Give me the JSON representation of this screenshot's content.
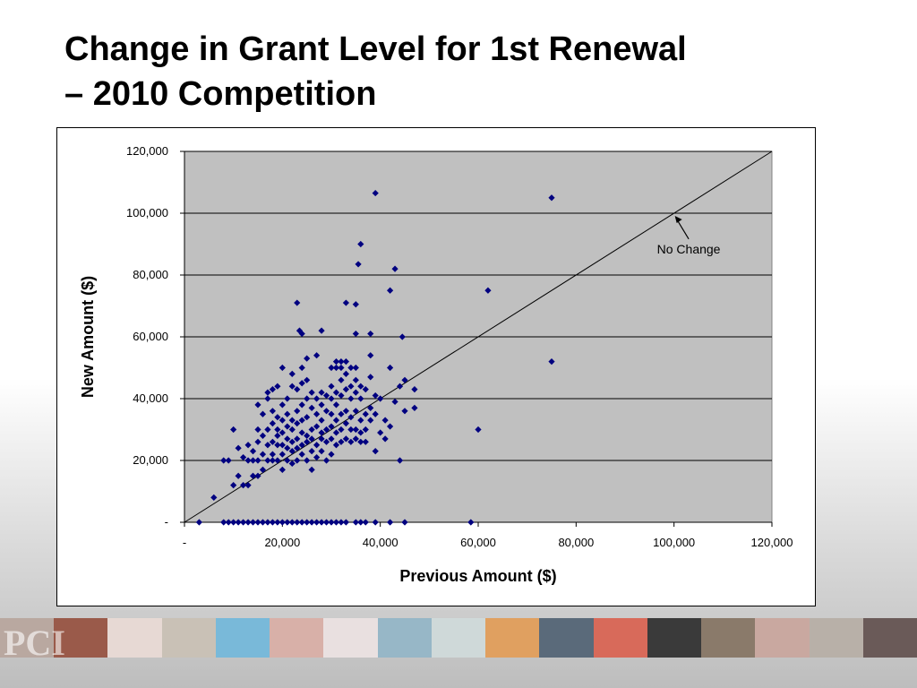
{
  "title": {
    "line1": "Change in Grant Level for 1st Renewal",
    "line2": "– 2010 Competition"
  },
  "footer": {
    "logo_text": "PCI",
    "tile_colors": [
      "#b9a8a0",
      "#9a5a4a",
      "#e7d9d4",
      "#c9c1b6",
      "#79b9d9",
      "#d8b0a8",
      "#e9e0e0",
      "#97b7c7",
      "#cfd9d9",
      "#e0a060",
      "#5a6a7a",
      "#d86a5a",
      "#3a3a3a",
      "#8a7a6a",
      "#c9a8a0",
      "#b8b0a8",
      "#6a5a58"
    ]
  },
  "chart_data": {
    "type": "scatter",
    "xlabel": "Previous Amount ($)",
    "ylabel": "New Amount ($)",
    "xlim": [
      0,
      120000
    ],
    "ylim": [
      0,
      120000
    ],
    "x_ticks": [
      "-",
      "20,000",
      "40,000",
      "60,000",
      "80,000",
      "100,000",
      "120,000"
    ],
    "y_ticks": [
      "-",
      "20,000",
      "40,000",
      "60,000",
      "80,000",
      "100,000",
      "120,000"
    ],
    "grid": "horizontal",
    "plot_background": "#c0c0c0",
    "marker_color": "#000080",
    "reference_line": {
      "from": [
        0,
        0
      ],
      "to": [
        120000,
        120000
      ]
    },
    "annotation": {
      "text": "No Change",
      "point": [
        100000,
        100000
      ],
      "label_at": [
        103000,
        87000
      ]
    },
    "series": [
      {
        "points": [
          [
            3000,
            0
          ],
          [
            8000,
            0
          ],
          [
            9000,
            0
          ],
          [
            10000,
            0
          ],
          [
            11000,
            0
          ],
          [
            12000,
            0
          ],
          [
            13000,
            0
          ],
          [
            14000,
            0
          ],
          [
            15000,
            0
          ],
          [
            16000,
            0
          ],
          [
            17000,
            0
          ],
          [
            18000,
            0
          ],
          [
            19000,
            0
          ],
          [
            20000,
            0
          ],
          [
            21000,
            0
          ],
          [
            22000,
            0
          ],
          [
            23000,
            0
          ],
          [
            24000,
            0
          ],
          [
            25000,
            0
          ],
          [
            26000,
            0
          ],
          [
            27000,
            0
          ],
          [
            28000,
            0
          ],
          [
            29000,
            0
          ],
          [
            30000,
            0
          ],
          [
            31000,
            0
          ],
          [
            32000,
            0
          ],
          [
            33000,
            0
          ],
          [
            35000,
            0
          ],
          [
            36000,
            0
          ],
          [
            37000,
            0
          ],
          [
            39000,
            0
          ],
          [
            42000,
            0
          ],
          [
            45000,
            0
          ],
          [
            58500,
            0
          ],
          [
            39000,
            106500
          ],
          [
            75000,
            105000
          ],
          [
            36000,
            90000
          ],
          [
            35500,
            83500
          ],
          [
            43000,
            82000
          ],
          [
            62000,
            75000
          ],
          [
            42000,
            75000
          ],
          [
            23000,
            71000
          ],
          [
            33000,
            71000
          ],
          [
            35000,
            70500
          ],
          [
            23500,
            62000
          ],
          [
            24000,
            61000
          ],
          [
            28000,
            62000
          ],
          [
            35000,
            61000
          ],
          [
            38000,
            61000
          ],
          [
            44500,
            60000
          ],
          [
            75000,
            52000
          ],
          [
            38000,
            54000
          ],
          [
            25000,
            53000
          ],
          [
            27000,
            54000
          ],
          [
            31000,
            52000
          ],
          [
            32000,
            52000
          ],
          [
            33000,
            52000
          ],
          [
            35000,
            50000
          ],
          [
            24000,
            50000
          ],
          [
            20000,
            50000
          ],
          [
            42000,
            50000
          ],
          [
            45000,
            46000
          ],
          [
            47000,
            43000
          ],
          [
            44000,
            44000
          ],
          [
            47000,
            37000
          ],
          [
            45000,
            36000
          ],
          [
            39000,
            41000
          ],
          [
            43000,
            39000
          ],
          [
            60000,
            30000
          ],
          [
            44000,
            20000
          ],
          [
            41000,
            27000
          ],
          [
            39000,
            23000
          ],
          [
            42000,
            31000
          ],
          [
            37000,
            26000
          ],
          [
            6000,
            8000
          ],
          [
            8000,
            20000
          ],
          [
            9000,
            20000
          ],
          [
            10000,
            12000
          ],
          [
            10000,
            30000
          ],
          [
            11000,
            24000
          ],
          [
            11000,
            15000
          ],
          [
            12000,
            21000
          ],
          [
            12000,
            12000
          ],
          [
            13000,
            20000
          ],
          [
            13000,
            12000
          ],
          [
            13000,
            25000
          ],
          [
            14000,
            15000
          ],
          [
            14000,
            20000
          ],
          [
            14000,
            23000
          ],
          [
            15000,
            15000
          ],
          [
            15000,
            20000
          ],
          [
            15000,
            26000
          ],
          [
            15000,
            30000
          ],
          [
            15000,
            38000
          ],
          [
            16000,
            17000
          ],
          [
            16000,
            22000
          ],
          [
            16000,
            28000
          ],
          [
            16000,
            35000
          ],
          [
            17000,
            20000
          ],
          [
            17000,
            25000
          ],
          [
            17000,
            30000
          ],
          [
            17000,
            40000
          ],
          [
            17000,
            42000
          ],
          [
            18000,
            20000
          ],
          [
            18000,
            22000
          ],
          [
            18000,
            26000
          ],
          [
            18000,
            32000
          ],
          [
            18000,
            36000
          ],
          [
            18000,
            43000
          ],
          [
            19000,
            20000
          ],
          [
            19000,
            25000
          ],
          [
            19000,
            28000
          ],
          [
            19000,
            30000
          ],
          [
            19000,
            34000
          ],
          [
            19000,
            44000
          ],
          [
            20000,
            17000
          ],
          [
            20000,
            22000
          ],
          [
            20000,
            25000
          ],
          [
            20000,
            29000
          ],
          [
            20000,
            33000
          ],
          [
            20000,
            38000
          ],
          [
            21000,
            20000
          ],
          [
            21000,
            24000
          ],
          [
            21000,
            27000
          ],
          [
            21000,
            31000
          ],
          [
            21000,
            35000
          ],
          [
            21000,
            40000
          ],
          [
            22000,
            19000
          ],
          [
            22000,
            23000
          ],
          [
            22000,
            26000
          ],
          [
            22000,
            30000
          ],
          [
            22000,
            33000
          ],
          [
            22000,
            44000
          ],
          [
            22000,
            48000
          ],
          [
            23000,
            20000
          ],
          [
            23000,
            24000
          ],
          [
            23000,
            27000
          ],
          [
            23000,
            32000
          ],
          [
            23000,
            36000
          ],
          [
            23000,
            43000
          ],
          [
            24000,
            22000
          ],
          [
            24000,
            25000
          ],
          [
            24000,
            29000
          ],
          [
            24000,
            33000
          ],
          [
            24000,
            38000
          ],
          [
            24000,
            45000
          ],
          [
            25000,
            20000
          ],
          [
            25000,
            26000
          ],
          [
            25000,
            28000
          ],
          [
            25000,
            34000
          ],
          [
            25000,
            40000
          ],
          [
            25000,
            46000
          ],
          [
            26000,
            17000
          ],
          [
            26000,
            23000
          ],
          [
            26000,
            27000
          ],
          [
            26000,
            30000
          ],
          [
            26000,
            37000
          ],
          [
            26000,
            42000
          ],
          [
            27000,
            21000
          ],
          [
            27000,
            25000
          ],
          [
            27000,
            31000
          ],
          [
            27000,
            35000
          ],
          [
            27000,
            40000
          ],
          [
            28000,
            23000
          ],
          [
            28000,
            27000
          ],
          [
            28000,
            29000
          ],
          [
            28000,
            33000
          ],
          [
            28000,
            38000
          ],
          [
            28000,
            42000
          ],
          [
            29000,
            20000
          ],
          [
            29000,
            26000
          ],
          [
            29000,
            30000
          ],
          [
            29000,
            36000
          ],
          [
            29000,
            41000
          ],
          [
            30000,
            22000
          ],
          [
            30000,
            27000
          ],
          [
            30000,
            31000
          ],
          [
            30000,
            35000
          ],
          [
            30000,
            40000
          ],
          [
            30000,
            44000
          ],
          [
            30000,
            50000
          ],
          [
            31000,
            25000
          ],
          [
            31000,
            29000
          ],
          [
            31000,
            33000
          ],
          [
            31000,
            38000
          ],
          [
            31000,
            42000
          ],
          [
            31000,
            50000
          ],
          [
            32000,
            26000
          ],
          [
            32000,
            30000
          ],
          [
            32000,
            35000
          ],
          [
            32000,
            41000
          ],
          [
            32000,
            46000
          ],
          [
            32000,
            50000
          ],
          [
            33000,
            27000
          ],
          [
            33000,
            32000
          ],
          [
            33000,
            36000
          ],
          [
            33000,
            43000
          ],
          [
            33000,
            48000
          ],
          [
            34000,
            26000
          ],
          [
            34000,
            30000
          ],
          [
            34000,
            34000
          ],
          [
            34000,
            40000
          ],
          [
            34000,
            44000
          ],
          [
            34000,
            50000
          ],
          [
            35000,
            27000
          ],
          [
            35000,
            30000
          ],
          [
            35000,
            36000
          ],
          [
            35000,
            42000
          ],
          [
            35000,
            46000
          ],
          [
            36000,
            26000
          ],
          [
            36000,
            29000
          ],
          [
            36000,
            33000
          ],
          [
            36000,
            40000
          ],
          [
            36000,
            44000
          ],
          [
            37000,
            30000
          ],
          [
            37000,
            35000
          ],
          [
            37000,
            43000
          ],
          [
            38000,
            33000
          ],
          [
            38000,
            37000
          ],
          [
            38000,
            47000
          ],
          [
            39000,
            35000
          ],
          [
            40000,
            29000
          ],
          [
            40000,
            40000
          ],
          [
            41000,
            33000
          ]
        ]
      }
    ]
  }
}
